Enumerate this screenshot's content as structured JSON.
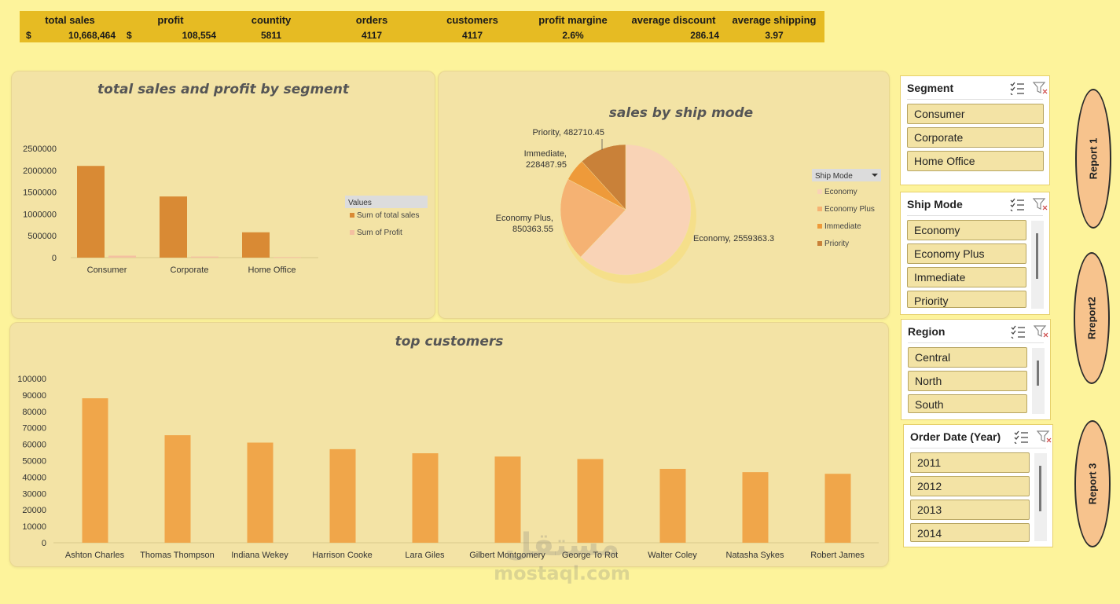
{
  "kpis": {
    "currency": "$",
    "items": [
      {
        "label": "total sales",
        "value": "10,668,464"
      },
      {
        "label": "profit",
        "value": "108,554"
      },
      {
        "label": "countity",
        "value": "5811"
      },
      {
        "label": "orders",
        "value": "4117"
      },
      {
        "label": "customers",
        "value": "4117"
      },
      {
        "label": "profit margine",
        "value": "2.6%"
      },
      {
        "label": "average discount",
        "value": "286.14"
      },
      {
        "label": "average shipping",
        "value": "3.97"
      }
    ]
  },
  "segment_chart": {
    "title": "total sales and profit by segment",
    "legend_title": "Values",
    "colors": {
      "sales": "#d98a34",
      "profit": "#f4c0a1"
    },
    "chart_data": {
      "type": "bar",
      "categories": [
        "Consumer",
        "Corporate",
        "Home Office"
      ],
      "series": [
        {
          "name": "Sum of total sales",
          "values": [
            2100000,
            1400000,
            580000
          ]
        },
        {
          "name": "Sum of Profit",
          "values": [
            45000,
            25000,
            12000
          ]
        }
      ],
      "ylim": [
        0,
        2500000
      ],
      "yticks": [
        "2500000",
        "2000000",
        "1500000",
        "1000000",
        "500000",
        "0"
      ]
    }
  },
  "ship_chart": {
    "title": "sales by ship mode",
    "legend_title": "Ship Mode",
    "colors": [
      "#f9d3b6",
      "#f5b273",
      "#ee9a3a",
      "#c98139"
    ],
    "chart_data": {
      "type": "pie",
      "labels": [
        "Economy",
        "Economy Plus",
        "Immediate",
        "Priority"
      ],
      "values": [
        2559363.3,
        850363.55,
        228487.95,
        482710.45
      ],
      "data_labels": [
        "Economy, 2559363.3",
        "Economy Plus,|850363.55",
        "Immediate,|228487.95",
        "Priority, 482710.45"
      ]
    }
  },
  "customers_chart": {
    "title": "top customers",
    "color": "#f0a64a",
    "chart_data": {
      "type": "bar",
      "categories": [
        "Ashton Charles",
        "Thomas Thompson",
        "Indiana Wekey",
        "Harrison Cooke",
        "Lara Giles",
        "Gilbert Montgomery",
        "George To Rot",
        "Walter Coley",
        "Natasha Sykes",
        "Robert James"
      ],
      "values": [
        88000,
        65500,
        61000,
        57000,
        54500,
        52500,
        51000,
        45000,
        43000,
        42000
      ],
      "ylim": [
        0,
        100000
      ],
      "yticks": [
        "100000",
        "90000",
        "80000",
        "70000",
        "60000",
        "50000",
        "40000",
        "30000",
        "20000",
        "10000",
        "0"
      ]
    }
  },
  "slicers": {
    "segment": {
      "title": "Segment",
      "items": [
        "Consumer",
        "Corporate",
        "Home Office"
      ]
    },
    "ship_mode": {
      "title": "Ship Mode",
      "items": [
        "Economy",
        "Economy Plus",
        "Immediate",
        "Priority"
      ]
    },
    "region": {
      "title": "Region",
      "items": [
        "Central",
        "North",
        "South"
      ]
    },
    "order_date": {
      "title": "Order Date (Year)",
      "items": [
        "2011",
        "2012",
        "2013",
        "2014"
      ]
    }
  },
  "reports": [
    "Report 1",
    "Rreport2",
    "Report 3"
  ],
  "watermark": {
    "arabic": "مستقل",
    "latin": "mostaql.com"
  }
}
